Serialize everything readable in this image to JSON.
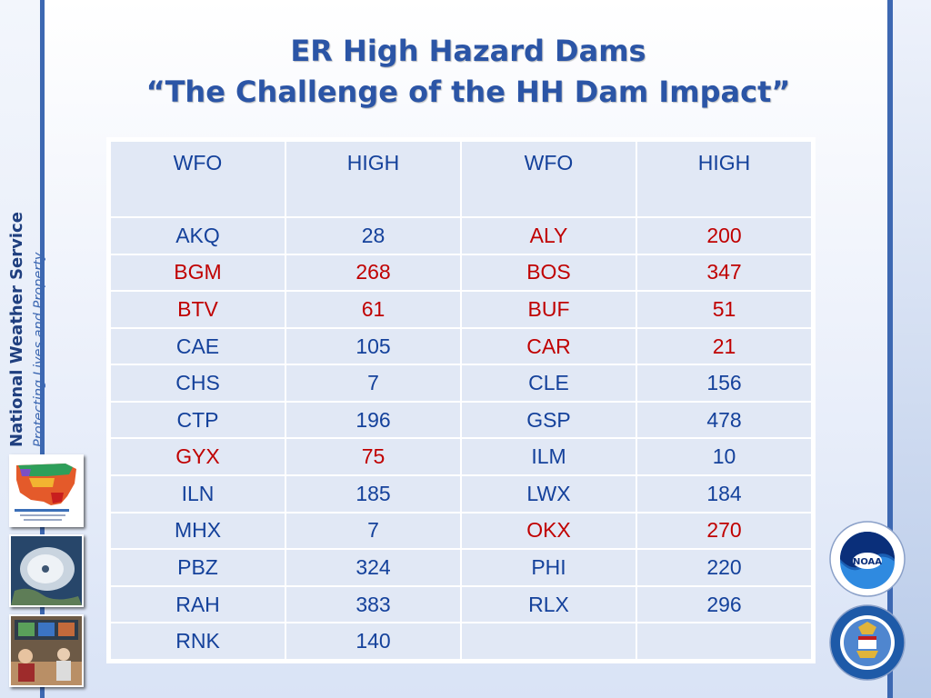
{
  "title": {
    "line1": "ER High Hazard Dams",
    "line2": "“The Challenge of the HH Dam Impact”"
  },
  "sidebar": {
    "org_name": "National Weather Service",
    "tagline": "Protecting Lives and Property"
  },
  "table": {
    "headers": [
      "WFO",
      "HIGH",
      "WFO",
      "HIGH"
    ],
    "rows": [
      {
        "wfo1": "AKQ",
        "high1": "28",
        "wfo2": "ALY",
        "high2": "200",
        "red1": false,
        "red2": true
      },
      {
        "wfo1": "BGM",
        "high1": "268",
        "wfo2": "BOS",
        "high2": "347",
        "red1": true,
        "red2": true
      },
      {
        "wfo1": "BTV",
        "high1": "61",
        "wfo2": "BUF",
        "high2": "51",
        "red1": true,
        "red2": true
      },
      {
        "wfo1": "CAE",
        "high1": "105",
        "wfo2": "CAR",
        "high2": "21",
        "red1": false,
        "red2": true
      },
      {
        "wfo1": "CHS",
        "high1": "7",
        "wfo2": "CLE",
        "high2": "156",
        "red1": false,
        "red2": false
      },
      {
        "wfo1": "CTP",
        "high1": "196",
        "wfo2": "GSP",
        "high2": "478",
        "red1": false,
        "red2": false
      },
      {
        "wfo1": "GYX",
        "high1": "75",
        "wfo2": "ILM",
        "high2": "10",
        "red1": true,
        "red2": false
      },
      {
        "wfo1": "ILN",
        "high1": "185",
        "wfo2": "LWX",
        "high2": "184",
        "red1": false,
        "red2": false
      },
      {
        "wfo1": "MHX",
        "high1": "7",
        "wfo2": "OKX",
        "high2": "270",
        "red1": false,
        "red2": true
      },
      {
        "wfo1": "PBZ",
        "high1": "324",
        "wfo2": "PHI",
        "high2": "220",
        "red1": false,
        "red2": false
      },
      {
        "wfo1": "RAH",
        "high1": "383",
        "wfo2": "RLX",
        "high2": "296",
        "red1": false,
        "red2": false
      },
      {
        "wfo1": "RNK",
        "high1": "140",
        "wfo2": "",
        "high2": "",
        "red1": false,
        "red2": false
      }
    ]
  },
  "colors": {
    "accent": "#2b55a6",
    "rule": "#3d68b2",
    "text_default": "#14419b",
    "text_highlight": "#c00000",
    "cell_bg": "#e1e8f5"
  },
  "images": [
    {
      "name": "temperature-map-thumbnail"
    },
    {
      "name": "hurricane-satellite-thumbnail"
    },
    {
      "name": "forecast-office-thumbnail"
    }
  ],
  "logos": [
    {
      "name": "noaa-logo"
    },
    {
      "name": "department-of-commerce-seal"
    }
  ]
}
